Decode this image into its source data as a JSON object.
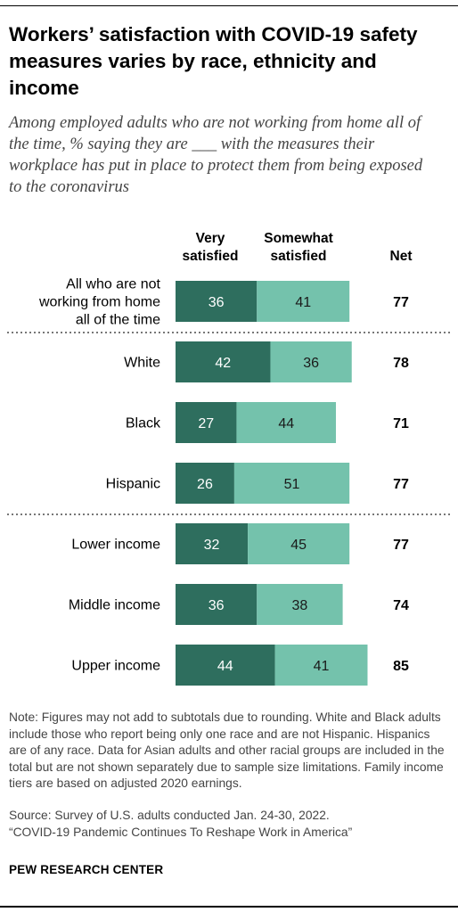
{
  "title": "Workers’ satisfaction with COVID-19 safety measures varies by race, ethnicity and income",
  "subtitle": "Among employed adults who are not working from home all of the time, % saying they are ___ with the measures their workplace has put in place to protect them from being exposed to the coronavirus",
  "note": "Note: Figures may not add to subtotals due to rounding. White and Black adults include those who report being only one race and are not Hispanic. Hispanics are of any race. Data for Asian adults and other racial groups are included in the total but are not shown separately due to sample size limitations. Family income tiers are based on adjusted 2020 earnings.",
  "source": "Source: Survey of U.S. adults conducted Jan. 24-30, 2022.",
  "report": "“COVID-19 Pandemic Continues To Reshape Work in America”",
  "brand": "PEW RESEARCH CENTER",
  "colors": {
    "very_satisfied": "#2e6e5e",
    "somewhat_satisfied": "#74c2ac",
    "separator": "#777777"
  },
  "chart_data": {
    "type": "bar",
    "orientation": "horizontal",
    "stacked": true,
    "column_headers": {
      "very": [
        "Very",
        "satisfied"
      ],
      "somewhat": [
        "Somewhat",
        "satisfied"
      ],
      "net": "Net"
    },
    "categories": [
      [
        "All who are not",
        "working from home",
        "all of the time"
      ],
      [
        "White"
      ],
      [
        "Black"
      ],
      [
        "Hispanic"
      ],
      [
        "Lower income"
      ],
      [
        "Middle income"
      ],
      [
        "Upper income"
      ]
    ],
    "series": [
      {
        "name": "Very satisfied",
        "values": [
          36,
          42,
          27,
          26,
          32,
          36,
          44
        ]
      },
      {
        "name": "Somewhat satisfied",
        "values": [
          41,
          36,
          44,
          51,
          45,
          38,
          41
        ]
      }
    ],
    "net": [
      77,
      78,
      71,
      77,
      77,
      74,
      85
    ],
    "separators_after": [
      0,
      3
    ],
    "xlim": [
      0,
      85
    ],
    "grid": false,
    "legend": "column headers above bars"
  }
}
